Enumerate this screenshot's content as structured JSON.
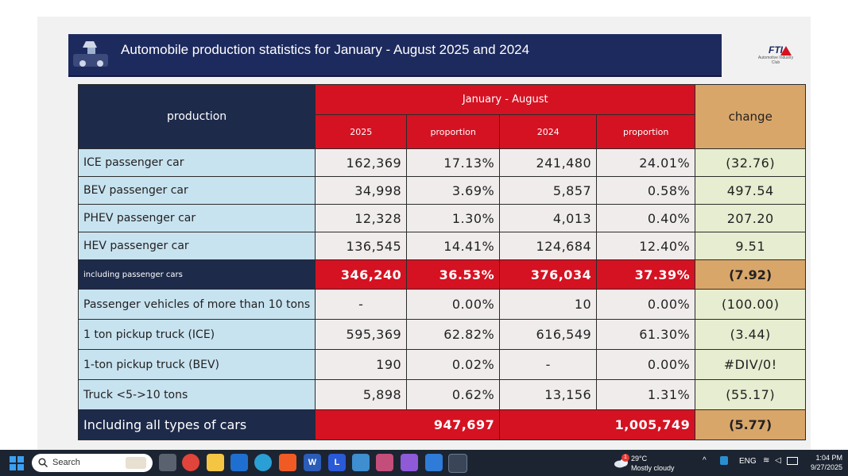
{
  "slide": {
    "title": "Automobile production statistics for January - August 2025 and 2024",
    "logo_text": "FTI",
    "logo_sub": "Automotive Industry Club"
  },
  "table": {
    "header": {
      "production": "production",
      "period": "January - August",
      "change": "change",
      "col_2025": "2025",
      "col_prop1": "proportion",
      "col_2024": "2024",
      "col_prop2": "proportion"
    },
    "rows": [
      {
        "label": "ICE passenger car",
        "v2025": "162,369",
        "p2025": "17.13%",
        "v2024": "241,480",
        "p2024": "24.01%",
        "change": "(32.76)"
      },
      {
        "label": "BEV passenger car",
        "v2025": "34,998",
        "p2025": "3.69%",
        "v2024": "5,857",
        "p2024": "0.58%",
        "change": "497.54"
      },
      {
        "label": "PHEV passenger car",
        "v2025": "12,328",
        "p2025": "1.30%",
        "v2024": "4,013",
        "p2024": "0.40%",
        "change": "207.20"
      },
      {
        "label": "HEV passenger car",
        "v2025": "136,545",
        "p2025": "14.41%",
        "v2024": "124,684",
        "p2024": "12.40%",
        "change": "9.51"
      }
    ],
    "subtotal": {
      "label": "including passenger cars",
      "v2025": "346,240",
      "p2025": "36.53%",
      "v2024": "376,034",
      "p2024": "37.39%",
      "change": "(7.92)"
    },
    "rows2": [
      {
        "label": "Passenger vehicles of more than 10 tons",
        "v2025": "-",
        "p2025": "0.00%",
        "v2024": "10",
        "p2024": "0.00%",
        "change": "(100.00)"
      },
      {
        "label": "1 ton pickup truck (ICE)",
        "v2025": "595,369",
        "p2025": "62.82%",
        "v2024": "616,549",
        "p2024": "61.30%",
        "change": "(3.44)"
      },
      {
        "label": "1-ton pickup truck (BEV)",
        "v2025": "190",
        "p2025": "0.02%",
        "v2024": "-",
        "p2024": "0.00%",
        "change": "#DIV/0!"
      },
      {
        "label": "Truck <5->10 tons",
        "v2025": "5,898",
        "p2025": "0.62%",
        "v2024": "13,156",
        "p2024": "1.31%",
        "change": "(55.17)"
      }
    ],
    "total": {
      "label": "Including all types of cars",
      "v2025": "947,697",
      "v2024": "1,005,749",
      "change": "(5.77)"
    }
  },
  "taskbar": {
    "search_placeholder": "Search",
    "apps": [
      "task-view",
      "chrome",
      "file-explorer",
      "outlook",
      "edge",
      "brave",
      "word",
      "l-app",
      "photos",
      "snipping",
      "copilot",
      "store",
      "browser-active"
    ],
    "weather_badge": "1",
    "weather_temp": "29°C",
    "weather_cond": "Mostly cloudy",
    "lang": "ENG",
    "time": "1:04 PM",
    "date": "9/27/2025"
  },
  "colors": {
    "title_bg": "#1d2a5e",
    "red": "#d51222",
    "navy": "#1d2a4a",
    "gold": "#d9a66a",
    "label_blue": "#c8e3f0"
  }
}
